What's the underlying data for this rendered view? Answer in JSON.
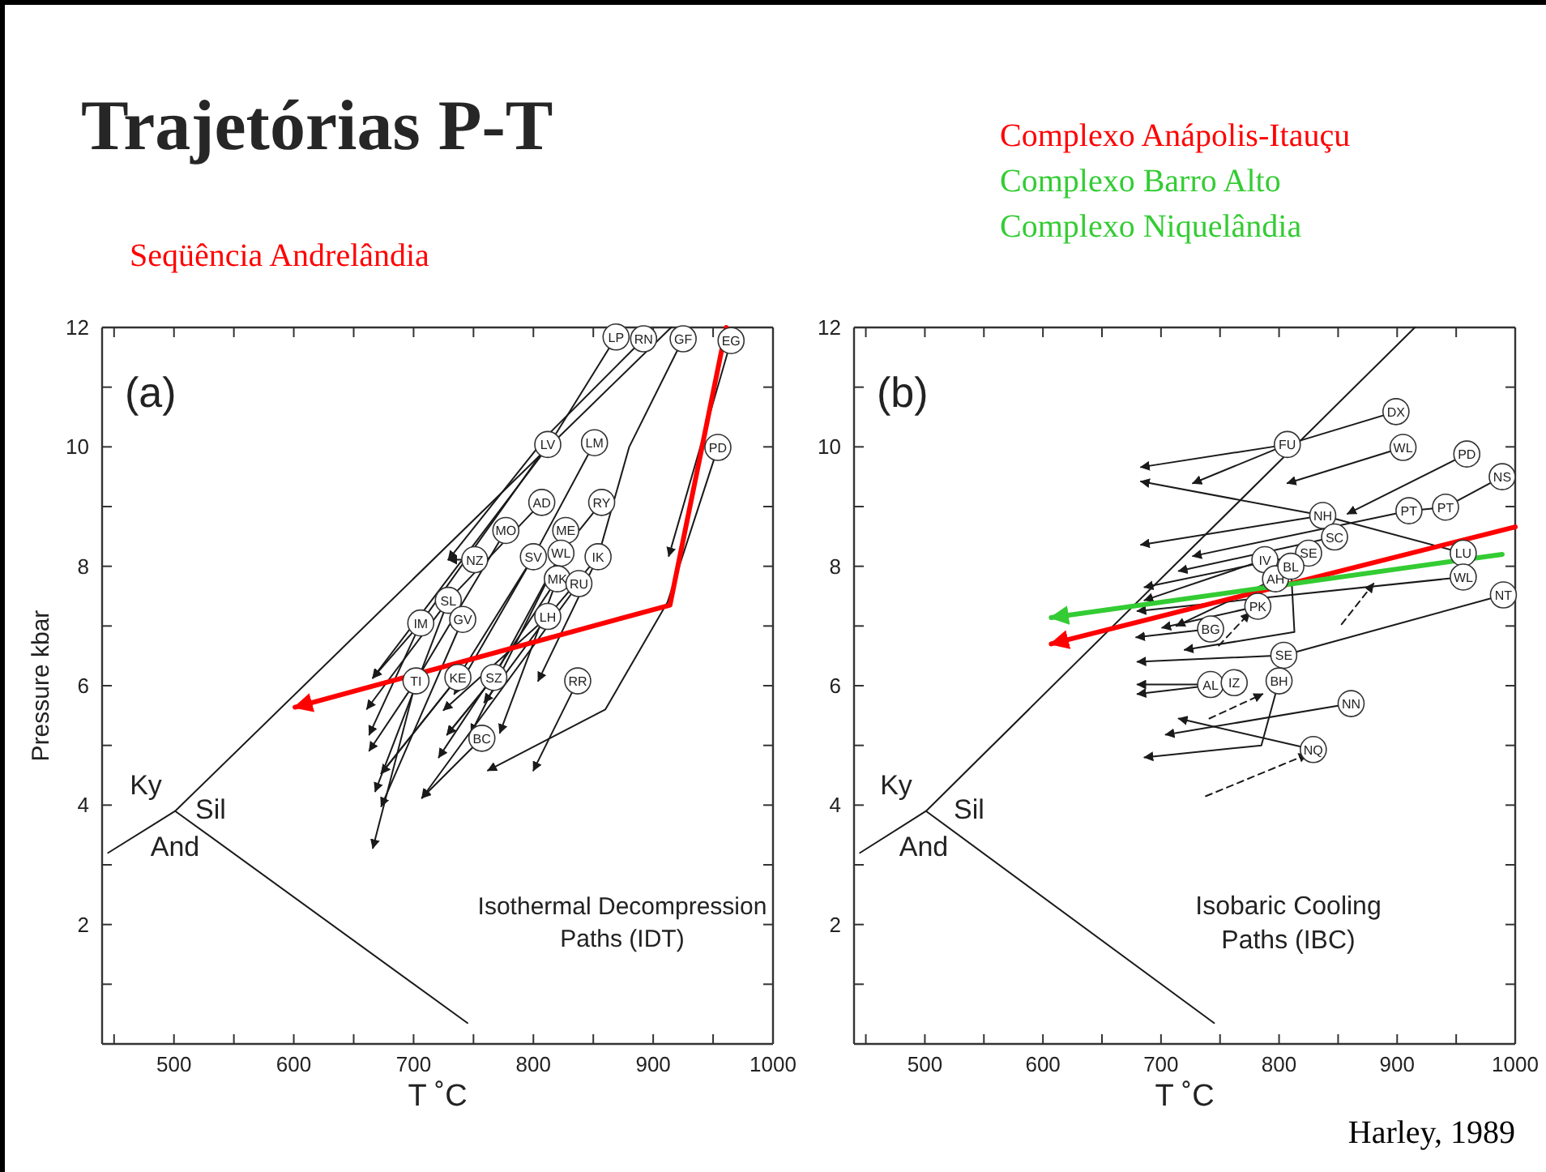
{
  "chart_data": [
    {
      "type": "line",
      "title": "Trajetórias P-T",
      "subtitle": "(a)",
      "xlabel": "T ˚C",
      "ylabel": "Pressure kbar",
      "xlim": [
        440,
        1000
      ],
      "ylim": [
        0,
        12
      ],
      "xticks": [
        {
          "value": 450,
          "label": null
        },
        500,
        {
          "value": 550,
          "label": null
        },
        600,
        {
          "value": 650,
          "label": null
        },
        700,
        {
          "value": 750,
          "label": null
        },
        800,
        {
          "value": 850,
          "label": null
        },
        900,
        {
          "value": 950,
          "label": null
        },
        1000
      ],
      "yticks": [
        {
          "value": 1,
          "label": null
        },
        2,
        {
          "value": 3,
          "label": null
        },
        4,
        {
          "value": 5,
          "label": null
        },
        6,
        {
          "value": 7,
          "label": null
        },
        8,
        {
          "value": 9,
          "label": null
        },
        10,
        {
          "value": 11,
          "label": null
        },
        12
      ],
      "grid": false,
      "legend": "top left",
      "annotations": [
        "Ky",
        "Sil",
        "And",
        "Isothermal Decompression\nPaths (IDT)"
      ],
      "series": [
        {
          "color": "#1a1a1a",
          "line_style": "solid",
          "x": [
            445,
            501,
            915
          ],
          "values": [
            3.2,
            3.9,
            12
          ]
        },
        {
          "color": "#1a1a1a",
          "line_style": "solid",
          "x": [
            501,
            745
          ],
          "values": [
            3.9,
            0.35
          ]
        },
        {
          "color": "#1a1a1a",
          "x": [
            869,
            812,
            666
          ],
          "values": [
            11.84,
            10.0,
            6.13
          ],
          "value_labels": [
            "LP",
            null,
            null
          ]
        },
        {
          "color": "#1a1a1a",
          "x": [
            892,
            812,
            729
          ],
          "values": [
            11.81,
            10.2,
            8.11
          ],
          "value_labels": [
            "RN",
            null,
            null
          ]
        },
        {
          "color": "#1a1a1a",
          "x": [
            925,
            880,
            854,
            804
          ],
          "values": [
            11.81,
            10.0,
            8.16,
            6.08
          ],
          "value_labels": [
            "GF",
            null,
            null,
            null
          ]
        },
        {
          "color": "#1a1a1a",
          "x": [
            965,
            913
          ],
          "values": [
            11.78,
            8.17
          ],
          "value_labels": [
            "EG",
            null
          ]
        },
        {
          "color": "#1a1a1a",
          "x": [
            954,
            912,
            860,
            762
          ],
          "values": [
            9.99,
            7.4,
            5.6,
            4.58
          ],
          "value_labels": [
            "PD",
            null,
            null,
            null
          ]
        },
        {
          "color": "#1a1a1a",
          "x": [
            837,
            800
          ],
          "values": [
            6.08,
            4.58
          ],
          "value_labels": [
            "RR",
            null
          ]
        },
        {
          "color": "#1a1a1a",
          "x": [
            812,
            706,
            663
          ],
          "values": [
            10.04,
            7.05,
            5.18
          ],
          "value_labels": [
            "LV",
            null,
            null
          ]
        },
        {
          "color": "#1a1a1a",
          "x": [
            851,
            800,
            734
          ],
          "values": [
            10.07,
            8.16,
            5.86
          ],
          "value_labels": [
            "LM",
            null,
            null
          ]
        },
        {
          "color": "#1a1a1a",
          "x": [
            807,
            729,
            661
          ],
          "values": [
            9.07,
            7.43,
            5.61
          ],
          "value_labels": [
            "AD",
            null,
            null
          ]
        },
        {
          "color": "#1a1a1a",
          "x": [
            857,
            823,
            748
          ],
          "values": [
            9.07,
            8.22,
            5.21
          ],
          "value_labels": [
            "RY",
            null,
            null
          ]
        },
        {
          "color": "#1a1a1a",
          "x": [
            777,
            702,
            663
          ],
          "values": [
            8.6,
            6.08,
            4.91
          ],
          "value_labels": [
            "MO",
            null,
            null
          ]
        },
        {
          "color": "#1a1a1a",
          "x": [
            827,
            820,
            772
          ],
          "values": [
            8.6,
            7.79,
            5.21
          ],
          "value_labels": [
            "ME",
            null,
            null
          ]
        },
        {
          "color": "#1a1a1a",
          "x": [
            751,
            729
          ],
          "values": [
            8.11,
            8.11
          ],
          "value_labels": [
            "NZ",
            null
          ]
        },
        {
          "color": "#1a1a1a",
          "x": [
            800,
            737,
            673
          ],
          "values": [
            8.16,
            6.14,
            4.53
          ],
          "value_labels": [
            "SV",
            null,
            null
          ]
        },
        {
          "color": "#1a1a1a",
          "x": [
            823,
            767,
            728
          ],
          "values": [
            8.22,
            6.14,
            5.18
          ],
          "value_labels": [
            "WL",
            null,
            null
          ]
        },
        {
          "color": "#1a1a1a",
          "x": [
            854,
            812,
            759
          ],
          "values": [
            8.16,
            7.16,
            5.72
          ],
          "value_labels": [
            "IK",
            null,
            null
          ]
        },
        {
          "color": "#1a1a1a",
          "x": [
            820,
            721
          ],
          "values": [
            7.79,
            4.8
          ],
          "value_labels": [
            "MK",
            null
          ]
        },
        {
          "color": "#1a1a1a",
          "x": [
            838,
            707
          ],
          "values": [
            7.71,
            4.12
          ],
          "value_labels": [
            "RU",
            null
          ]
        },
        {
          "color": "#1a1a1a",
          "x": [
            729,
            668
          ],
          "values": [
            7.43,
            4.23
          ],
          "value_labels": [
            "SL",
            null
          ]
        },
        {
          "color": "#1a1a1a",
          "x": [
            812,
            725
          ],
          "values": [
            7.16,
            5.59
          ],
          "value_labels": [
            "LH",
            null
          ]
        },
        {
          "color": "#1a1a1a",
          "x": [
            741,
            673
          ],
          "values": [
            7.11,
            3.98
          ],
          "value_labels": [
            "GV",
            null
          ]
        },
        {
          "color": "#1a1a1a",
          "x": [
            706,
            666
          ],
          "values": [
            7.05,
            6.13
          ],
          "value_labels": [
            "IM",
            null
          ]
        },
        {
          "color": "#1a1a1a",
          "x": [
            702,
            666
          ],
          "values": [
            6.08,
            3.28
          ],
          "value_labels": [
            "TI",
            null
          ]
        },
        {
          "color": "#1a1a1a",
          "x": [
            737,
            673
          ],
          "values": [
            6.14,
            4.53
          ],
          "value_labels": [
            "KE",
            null
          ]
        },
        {
          "color": "#1a1a1a",
          "x": [
            767,
            728
          ],
          "values": [
            6.14,
            5.18
          ],
          "value_labels": [
            "SZ",
            null
          ]
        },
        {
          "color": "#1a1a1a",
          "x": [
            757,
            707
          ],
          "values": [
            5.12,
            4.12
          ],
          "value_labels": [
            "BC",
            null
          ]
        },
        {
          "name": "Seqüência Andrelândia",
          "color": "#ff0000",
          "x": [
            961,
            914,
            601
          ],
          "values": [
            12,
            7.35,
            5.64
          ]
        }
      ]
    },
    {
      "type": "line",
      "title": "(b)",
      "xlabel": "T ˚C",
      "xlim": [
        440,
        1000
      ],
      "ylim": [
        0,
        12
      ],
      "xticks": [
        {
          "value": 450,
          "label": null
        },
        500,
        {
          "value": 550,
          "label": null
        },
        600,
        {
          "value": 650,
          "label": null
        },
        700,
        {
          "value": 750,
          "label": null
        },
        800,
        {
          "value": 850,
          "label": null
        },
        900,
        {
          "value": 950,
          "label": null
        },
        1000
      ],
      "yticks": [
        {
          "value": 1,
          "label": null
        },
        2,
        {
          "value": 3,
          "label": null
        },
        4,
        {
          "value": 5,
          "label": null
        },
        6,
        {
          "value": 7,
          "label": null
        },
        8,
        {
          "value": 9,
          "label": null
        },
        10,
        {
          "value": 11,
          "label": null
        },
        12
      ],
      "grid": false,
      "legend": "top",
      "annotations": [
        "Ky",
        "Sil",
        "And",
        "Isobaric Cooling\nPaths (IBC)",
        "Harley, 1989"
      ],
      "series": [
        {
          "color": "#1a1a1a",
          "line_style": "solid",
          "x": [
            445,
            501,
            915
          ],
          "values": [
            3.2,
            3.9,
            12
          ]
        },
        {
          "color": "#1a1a1a",
          "line_style": "solid",
          "x": [
            501,
            745
          ],
          "values": [
            3.9,
            0.35
          ]
        },
        {
          "color": "#1a1a1a",
          "x": [
            899,
            807,
            683
          ],
          "values": [
            10.59,
            10.04,
            9.66
          ],
          "value_labels": [
            "DX",
            "FU",
            null
          ]
        },
        {
          "color": "#1a1a1a",
          "x": [
            807,
            727
          ],
          "values": [
            10.04,
            9.39
          ]
        },
        {
          "color": "#1a1a1a",
          "x": [
            905,
            807
          ],
          "values": [
            9.99,
            9.39
          ],
          "value_labels": [
            "WL",
            null
          ]
        },
        {
          "color": "#1a1a1a",
          "x": [
            959,
            858
          ],
          "values": [
            9.88,
            8.88
          ],
          "value_labels": [
            "PD",
            null
          ]
        },
        {
          "color": "#1a1a1a",
          "x": [
            989,
            941,
            910,
            727
          ],
          "values": [
            9.5,
            8.99,
            8.93,
            8.17
          ],
          "value_labels": [
            "NS",
            "PT",
            "PT",
            null
          ]
        },
        {
          "color": "#1a1a1a",
          "x": [
            956,
            837,
            683
          ],
          "values": [
            8.22,
            8.85,
            9.42
          ],
          "value_labels": [
            "LU",
            "NH",
            null
          ]
        },
        {
          "color": "#1a1a1a",
          "x": [
            837,
            683
          ],
          "values": [
            8.85,
            8.36
          ]
        },
        {
          "color": "#1a1a1a",
          "x": [
            847,
            715
          ],
          "values": [
            8.49,
            7.92
          ],
          "value_labels": [
            "SC",
            null
          ]
        },
        {
          "color": "#1a1a1a",
          "x": [
            825,
            686
          ],
          "values": [
            8.22,
            7.65
          ],
          "value_labels": [
            "SE",
            null
          ]
        },
        {
          "color": "#1a1a1a",
          "x": [
            788,
            686
          ],
          "values": [
            8.11,
            7.43
          ],
          "value_labels": [
            "IV",
            null
          ]
        },
        {
          "color": "#1a1a1a",
          "x": [
            956,
            680
          ],
          "values": [
            7.82,
            7.25
          ],
          "value_labels": [
            "WL",
            null
          ]
        },
        {
          "color": "#1a1a1a",
          "x": [
            990,
            804,
            680
          ],
          "values": [
            7.52,
            6.51,
            6.4
          ],
          "value_labels": [
            "NT",
            "SE",
            null
          ]
        },
        {
          "color": "#1a1a1a",
          "x": [
            797,
            713
          ],
          "values": [
            7.79,
            7.0
          ],
          "value_labels": [
            "AH",
            null
          ]
        },
        {
          "color": "#1a1a1a",
          "x": [
            810,
            813,
            720
          ],
          "values": [
            8.0,
            6.9,
            6.6
          ],
          "value_labels": [
            "BL",
            null,
            null
          ]
        },
        {
          "color": "#1a1a1a",
          "x": [
            782,
            701
          ],
          "values": [
            7.33,
            6.97
          ],
          "value_labels": [
            "PK",
            null
          ]
        },
        {
          "color": "#1a1a1a",
          "x": [
            742,
            679
          ],
          "values": [
            6.95,
            6.81
          ],
          "value_labels": [
            "BG",
            null
          ]
        },
        {
          "color": "#1a1a1a",
          "x": [
            742,
            680
          ],
          "values": [
            6.02,
            6.02
          ],
          "value_labels": [
            "AL",
            null
          ]
        },
        {
          "color": "#1a1a1a",
          "x": [
            762,
            680
          ],
          "values": [
            6.05,
            5.86
          ],
          "value_labels": [
            "IZ",
            null
          ]
        },
        {
          "color": "#1a1a1a",
          "x": [
            800,
            785,
            686
          ],
          "values": [
            6.08,
            5.0,
            4.8
          ],
          "value_labels": [
            "BH",
            null,
            null
          ]
        },
        {
          "color": "#1a1a1a",
          "x": [
            861,
            704
          ],
          "values": [
            5.7,
            5.18
          ],
          "value_labels": [
            "NN",
            null
          ]
        },
        {
          "color": "#1a1a1a",
          "x": [
            829,
            715
          ],
          "values": [
            4.93,
            5.45
          ],
          "value_labels": [
            "NQ",
            null
          ]
        },
        {
          "color": "#1a1a1a",
          "line_style": "dashed",
          "x": [
            738,
            824
          ],
          "values": [
            4.15,
            4.85
          ]
        },
        {
          "color": "#1a1a1a",
          "line_style": "dashed",
          "x": [
            741,
            786
          ],
          "values": [
            5.45,
            5.86
          ]
        },
        {
          "color": "#1a1a1a",
          "line_style": "dashed",
          "x": [
            749,
            775
          ],
          "values": [
            6.67,
            7.22
          ]
        },
        {
          "color": "#1a1a1a",
          "line_style": "dashed",
          "x": [
            853,
            880
          ],
          "values": [
            7.03,
            7.71
          ]
        },
        {
          "name": "Complexo Anápolis-Itauçu",
          "color": "#ff0000",
          "x": [
            1000,
            607
          ],
          "values": [
            8.66,
            6.7
          ]
        },
        {
          "name": "Complexo Barro Alto\nComplexo Niquelândia",
          "color": "#33cc33",
          "x": [
            989,
            607
          ],
          "values": [
            8.2,
            7.14
          ]
        }
      ]
    }
  ]
}
